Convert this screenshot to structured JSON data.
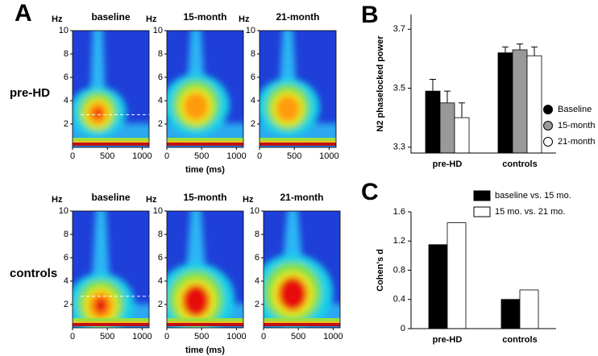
{
  "panel_labels": [
    "A",
    "B",
    "C"
  ],
  "chart_data": [
    {
      "type": "heatmap",
      "row_label": "pre-HD",
      "titles": [
        "baseline",
        "15-month",
        "21-month"
      ],
      "y_unit": "Hz",
      "ylim": [
        0,
        10
      ],
      "yticks": [
        2,
        4,
        6,
        8,
        10
      ],
      "xlim": [
        0,
        1100
      ],
      "xticks": [
        0,
        500,
        1000
      ],
      "xlabel": "time (ms)",
      "dashed_line": 2.8
    },
    {
      "type": "heatmap",
      "row_label": "controls",
      "titles": [
        "baseline",
        "15-month",
        "21-month"
      ],
      "y_unit": "Hz",
      "ylim": [
        0,
        10
      ],
      "yticks": [
        2,
        4,
        6,
        8,
        10
      ],
      "xlim": [
        0,
        1100
      ],
      "xticks": [
        0,
        500,
        1000
      ],
      "xlabel": "time (ms)",
      "dashed_line": 2.7
    },
    {
      "type": "bar",
      "ylabel": "N2 phaselocked power",
      "categories": [
        "pre-HD",
        "controls"
      ],
      "series": [
        {
          "name": "Baseline",
          "color": "#000000",
          "values": [
            3.49,
            3.62
          ],
          "errors": [
            0.04,
            0.02
          ]
        },
        {
          "name": "15-month",
          "color": "#999999",
          "values": [
            3.45,
            3.63
          ],
          "errors": [
            0.04,
            0.02
          ]
        },
        {
          "name": "21-month",
          "color": "#ffffff",
          "values": [
            3.4,
            3.61
          ],
          "errors": [
            0.05,
            0.03
          ]
        }
      ],
      "ylim": [
        3.28,
        3.75
      ],
      "yticks": [
        3.3,
        3.5,
        3.7
      ],
      "legend": "right"
    },
    {
      "type": "bar",
      "ylabel": "Cohen's d",
      "categories": [
        "pre-HD",
        "controls"
      ],
      "series": [
        {
          "name": "baseline vs. 15 mo.",
          "color": "#000000",
          "values": [
            1.15,
            0.4
          ]
        },
        {
          "name": "15 mo. vs. 21 mo.",
          "color": "#ffffff",
          "values": [
            1.45,
            0.53
          ]
        }
      ],
      "ylim": [
        0,
        1.6
      ],
      "yticks": [
        0,
        0.4,
        0.8,
        1.2,
        1.6
      ],
      "legend": "top"
    }
  ]
}
